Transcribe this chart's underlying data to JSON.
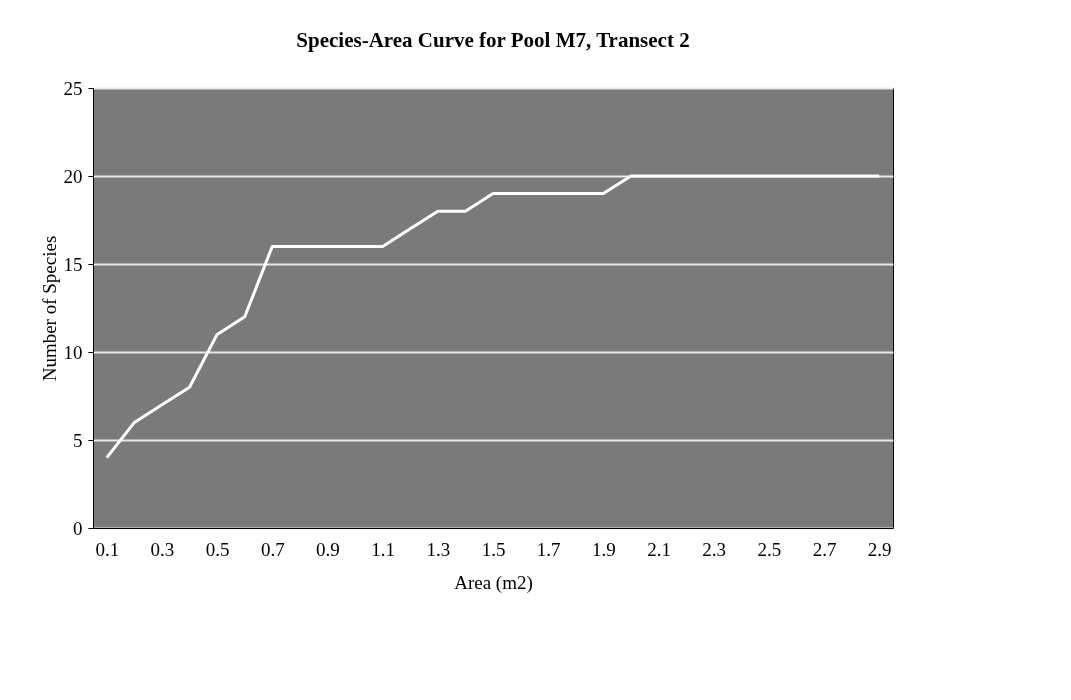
{
  "chart_data": {
    "type": "line",
    "title": "Species-Area Curve for Pool M7, Transect 2",
    "xlabel": "Area (m2)",
    "ylabel": "Number of Species",
    "categories": [
      "0.1",
      null,
      "0.3",
      null,
      "0.5",
      null,
      "0.7",
      null,
      "0.9",
      null,
      "1.1",
      null,
      "1.3",
      null,
      "1.5",
      null,
      "1.7",
      null,
      "1.9",
      null,
      "2.1",
      null,
      "2.3",
      null,
      "2.5",
      null,
      "2.7",
      null,
      "2.9"
    ],
    "series": [
      {
        "color": "#ffffff",
        "values": [
          4,
          6,
          7,
          8,
          11,
          12,
          16,
          16,
          16,
          16,
          16,
          17,
          18,
          18,
          19,
          19,
          19,
          19,
          19,
          20,
          20,
          20,
          20,
          20,
          20,
          20,
          20,
          20,
          20
        ]
      }
    ],
    "ylim": [
      0,
      25
    ],
    "yticks": [
      0,
      5,
      10,
      15,
      20,
      25
    ],
    "grid": "y",
    "marker": "none",
    "line_style": "solid"
  }
}
